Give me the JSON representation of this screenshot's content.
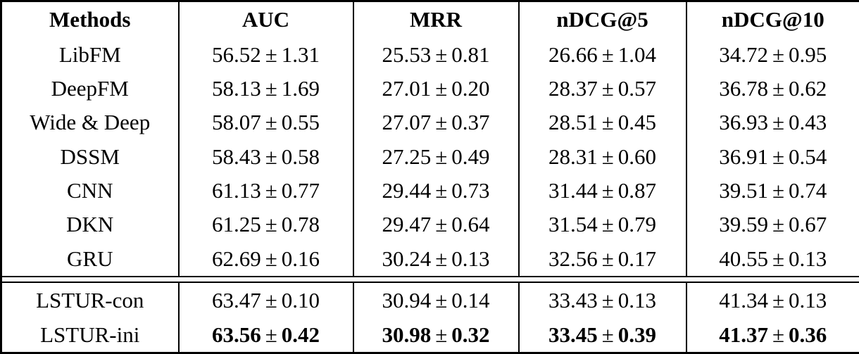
{
  "colors": {
    "background": "#ffffff",
    "text": "#000000",
    "border": "#000000"
  },
  "table": {
    "plus_minus": "±",
    "columns": [
      {
        "label": "Methods"
      },
      {
        "label": "AUC"
      },
      {
        "label": "MRR"
      },
      {
        "label": "nDCG@5"
      },
      {
        "label": "nDCG@10"
      }
    ],
    "groups": [
      {
        "rows": [
          {
            "method": "LibFM",
            "bold": false,
            "metrics": [
              {
                "mean": "56.52",
                "std": "1.31"
              },
              {
                "mean": "25.53",
                "std": "0.81"
              },
              {
                "mean": "26.66",
                "std": "1.04"
              },
              {
                "mean": "34.72",
                "std": "0.95"
              }
            ]
          },
          {
            "method": "DeepFM",
            "bold": false,
            "metrics": [
              {
                "mean": "58.13",
                "std": "1.69"
              },
              {
                "mean": "27.01",
                "std": "0.20"
              },
              {
                "mean": "28.37",
                "std": "0.57"
              },
              {
                "mean": "36.78",
                "std": "0.62"
              }
            ]
          },
          {
            "method": "Wide & Deep",
            "bold": false,
            "metrics": [
              {
                "mean": "58.07",
                "std": "0.55"
              },
              {
                "mean": "27.07",
                "std": "0.37"
              },
              {
                "mean": "28.51",
                "std": "0.45"
              },
              {
                "mean": "36.93",
                "std": "0.43"
              }
            ]
          },
          {
            "method": "DSSM",
            "bold": false,
            "metrics": [
              {
                "mean": "58.43",
                "std": "0.58"
              },
              {
                "mean": "27.25",
                "std": "0.49"
              },
              {
                "mean": "28.31",
                "std": "0.60"
              },
              {
                "mean": "36.91",
                "std": "0.54"
              }
            ]
          },
          {
            "method": "CNN",
            "bold": false,
            "metrics": [
              {
                "mean": "61.13",
                "std": "0.77"
              },
              {
                "mean": "29.44",
                "std": "0.73"
              },
              {
                "mean": "31.44",
                "std": "0.87"
              },
              {
                "mean": "39.51",
                "std": "0.74"
              }
            ]
          },
          {
            "method": "DKN",
            "bold": false,
            "metrics": [
              {
                "mean": "61.25",
                "std": "0.78"
              },
              {
                "mean": "29.47",
                "std": "0.64"
              },
              {
                "mean": "31.54",
                "std": "0.79"
              },
              {
                "mean": "39.59",
                "std": "0.67"
              }
            ]
          },
          {
            "method": "GRU",
            "bold": false,
            "metrics": [
              {
                "mean": "62.69",
                "std": "0.16"
              },
              {
                "mean": "30.24",
                "std": "0.13"
              },
              {
                "mean": "32.56",
                "std": "0.17"
              },
              {
                "mean": "40.55",
                "std": "0.13"
              }
            ]
          }
        ]
      },
      {
        "rows": [
          {
            "method": "LSTUR-con",
            "bold": false,
            "metrics": [
              {
                "mean": "63.47",
                "std": "0.10"
              },
              {
                "mean": "30.94",
                "std": "0.14"
              },
              {
                "mean": "33.43",
                "std": "0.13"
              },
              {
                "mean": "41.34",
                "std": "0.13"
              }
            ]
          },
          {
            "method": "LSTUR-ini",
            "bold": true,
            "metrics": [
              {
                "mean": "63.56",
                "std": "0.42"
              },
              {
                "mean": "30.98",
                "std": "0.32"
              },
              {
                "mean": "33.45",
                "std": "0.39"
              },
              {
                "mean": "41.37",
                "std": "0.36"
              }
            ]
          }
        ]
      }
    ]
  },
  "chart_data": {
    "type": "table",
    "title": "",
    "columns": [
      "Methods",
      "AUC",
      "MRR",
      "nDCG@5",
      "nDCG@10"
    ],
    "rows": [
      [
        "LibFM",
        "56.52 ± 1.31",
        "25.53 ± 0.81",
        "26.66 ± 1.04",
        "34.72 ± 0.95"
      ],
      [
        "DeepFM",
        "58.13 ± 1.69",
        "27.01 ± 0.20",
        "28.37 ± 0.57",
        "36.78 ± 0.62"
      ],
      [
        "Wide & Deep",
        "58.07 ± 0.55",
        "27.07 ± 0.37",
        "28.51 ± 0.45",
        "36.93 ± 0.43"
      ],
      [
        "DSSM",
        "58.43 ± 0.58",
        "27.25 ± 0.49",
        "28.31 ± 0.60",
        "36.91 ± 0.54"
      ],
      [
        "CNN",
        "61.13 ± 0.77",
        "29.44 ± 0.73",
        "31.44 ± 0.87",
        "39.51 ± 0.74"
      ],
      [
        "DKN",
        "61.25 ± 0.78",
        "29.47 ± 0.64",
        "31.54 ± 0.79",
        "39.59 ± 0.67"
      ],
      [
        "GRU",
        "62.69 ± 0.16",
        "30.24 ± 0.13",
        "32.56 ± 0.17",
        "40.55 ± 0.13"
      ],
      [
        "LSTUR-con",
        "63.47 ± 0.10",
        "30.94 ± 0.14",
        "33.43 ± 0.13",
        "41.34 ± 0.13"
      ],
      [
        "LSTUR-ini",
        "63.56 ± 0.42",
        "30.98 ± 0.32",
        "33.45 ± 0.39",
        "41.37 ± 0.36"
      ]
    ],
    "bold_rows": [
      "LSTUR-ini"
    ],
    "layout": {
      "header_rule": "double",
      "group_rule_after_row": "GRU",
      "grid": "full-vertical-rules"
    }
  }
}
